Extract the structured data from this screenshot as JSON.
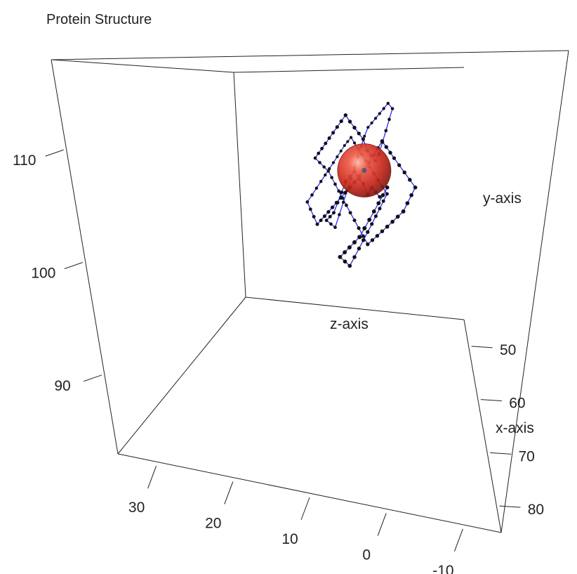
{
  "chart_data": {
    "type": "scatter3d",
    "title": "Protein Structure",
    "axes": {
      "x": {
        "label": "x-axis",
        "ticks": [
          50,
          60,
          70,
          80
        ],
        "range": [
          45,
          85
        ]
      },
      "y": {
        "label": "y-axis",
        "ticks": [
          -10,
          0,
          10,
          20,
          30
        ],
        "range": [
          -15,
          35
        ]
      },
      "z": {
        "label": "z-axis",
        "ticks": [
          90,
          100,
          110
        ],
        "range": [
          83,
          118
        ]
      }
    },
    "series": [
      {
        "style": "connected backbone trace",
        "points": [
          [
            58,
            4,
            100
          ],
          [
            59,
            5,
            101
          ],
          [
            60,
            6,
            102
          ],
          [
            61,
            7,
            101
          ],
          [
            62,
            8,
            103
          ],
          [
            63,
            9,
            104
          ],
          [
            62,
            10,
            105
          ],
          [
            61,
            11,
            104
          ],
          [
            60,
            12,
            103
          ],
          [
            59,
            13,
            101
          ],
          [
            58,
            14,
            99
          ],
          [
            57,
            15,
            97
          ],
          [
            56,
            16,
            96
          ],
          [
            55,
            17,
            95
          ],
          [
            54,
            16,
            94
          ],
          [
            53,
            15,
            93
          ],
          [
            52,
            14,
            95
          ],
          [
            51,
            13,
            97
          ],
          [
            50,
            12,
            99
          ],
          [
            49,
            11,
            101
          ],
          [
            48,
            10,
            103
          ],
          [
            47,
            9,
            105
          ],
          [
            46,
            8,
            107
          ],
          [
            45,
            7,
            109
          ],
          [
            46,
            6,
            111
          ],
          [
            47,
            5,
            112
          ],
          [
            48,
            4,
            113
          ],
          [
            49,
            3,
            114
          ],
          [
            50,
            2,
            115
          ],
          [
            51,
            1,
            116
          ],
          [
            52,
            0,
            115
          ],
          [
            53,
            1,
            113
          ],
          [
            54,
            2,
            111
          ],
          [
            55,
            3,
            109
          ],
          [
            56,
            4,
            107
          ],
          [
            57,
            5,
            106
          ],
          [
            58,
            6,
            107
          ],
          [
            59,
            7,
            108
          ],
          [
            60,
            8,
            110
          ],
          [
            61,
            9,
            111
          ],
          [
            62,
            10,
            112
          ],
          [
            63,
            11,
            113
          ],
          [
            62,
            12,
            114
          ],
          [
            61,
            13,
            113
          ],
          [
            60,
            14,
            112
          ],
          [
            59,
            15,
            111
          ],
          [
            58,
            16,
            110
          ],
          [
            57,
            17,
            109
          ],
          [
            56,
            18,
            108
          ],
          [
            55,
            19,
            107
          ],
          [
            54,
            20,
            106
          ],
          [
            53,
            19,
            105
          ],
          [
            52,
            18,
            104
          ],
          [
            51,
            17,
            103
          ],
          [
            52,
            16,
            102
          ],
          [
            53,
            15,
            101
          ],
          [
            54,
            14,
            100
          ],
          [
            55,
            13,
            99
          ],
          [
            56,
            12,
            98
          ],
          [
            57,
            11,
            97
          ],
          [
            58,
            10,
            96
          ],
          [
            59,
            9,
            95
          ],
          [
            60,
            8,
            94
          ],
          [
            61,
            7,
            93
          ],
          [
            62,
            6,
            94
          ],
          [
            63,
            5,
            95
          ],
          [
            64,
            4,
            96
          ],
          [
            65,
            3,
            97
          ],
          [
            66,
            2,
            98
          ],
          [
            67,
            1,
            99
          ],
          [
            68,
            0,
            100
          ],
          [
            67,
            -1,
            101
          ],
          [
            66,
            -2,
            102
          ],
          [
            65,
            -3,
            103
          ],
          [
            64,
            -2,
            104
          ],
          [
            63,
            -1,
            105
          ],
          [
            62,
            0,
            106
          ],
          [
            61,
            1,
            107
          ],
          [
            62,
            2,
            108
          ],
          [
            63,
            3,
            109
          ],
          [
            64,
            4,
            110
          ],
          [
            65,
            5,
            109
          ],
          [
            66,
            6,
            108
          ],
          [
            67,
            7,
            107
          ],
          [
            68,
            8,
            106
          ],
          [
            67,
            9,
            105
          ],
          [
            66,
            10,
            104
          ],
          [
            65,
            11,
            103
          ],
          [
            64,
            12,
            102
          ],
          [
            63,
            13,
            101
          ],
          [
            62,
            14,
            100
          ],
          [
            61,
            15,
            99
          ],
          [
            60,
            16,
            98
          ],
          [
            59,
            17,
            97
          ],
          [
            58,
            18,
            96
          ],
          [
            57,
            19,
            95
          ],
          [
            56,
            20,
            96
          ],
          [
            55,
            21,
            97
          ],
          [
            54,
            22,
            98
          ],
          [
            53,
            21,
            99
          ],
          [
            52,
            20,
            100
          ],
          [
            51,
            19,
            101
          ],
          [
            50,
            18,
            102
          ],
          [
            49,
            17,
            103
          ],
          [
            48,
            16,
            104
          ],
          [
            47,
            15,
            105
          ],
          [
            46,
            14,
            106
          ],
          [
            45,
            13,
            107
          ],
          [
            46,
            12,
            108
          ],
          [
            47,
            11,
            109
          ],
          [
            48,
            10,
            108
          ],
          [
            49,
            9,
            107
          ],
          [
            50,
            8,
            106
          ],
          [
            51,
            7,
            105
          ],
          [
            52,
            6,
            104
          ],
          [
            53,
            5,
            103
          ],
          [
            54,
            4,
            102
          ],
          [
            55,
            3,
            101
          ],
          [
            56,
            2,
            100
          ],
          [
            57,
            3,
            99
          ],
          [
            58,
            4,
            98
          ],
          [
            59,
            5,
            97
          ],
          [
            60,
            6,
            96
          ],
          [
            61,
            7,
            95
          ],
          [
            62,
            8,
            94
          ],
          [
            63,
            9,
            93
          ],
          [
            64,
            10,
            92
          ],
          [
            65,
            11,
            91
          ],
          [
            66,
            12,
            92
          ],
          [
            67,
            13,
            93
          ],
          [
            68,
            12,
            94
          ],
          [
            69,
            11,
            95
          ],
          [
            70,
            10,
            96
          ],
          [
            71,
            9,
            97
          ],
          [
            70,
            8,
            98
          ],
          [
            69,
            7,
            99
          ],
          [
            68,
            6,
            100
          ],
          [
            67,
            5,
            101
          ],
          [
            66,
            4,
            102
          ],
          [
            65,
            3,
            103
          ]
        ]
      }
    ],
    "highlight": {
      "shape": "sphere",
      "point_index": 84,
      "color": "#d93a2b"
    },
    "colors": {
      "line": "#2b2bff",
      "points": "#111111",
      "box": "#222222"
    },
    "grid": false,
    "legend": "none"
  }
}
